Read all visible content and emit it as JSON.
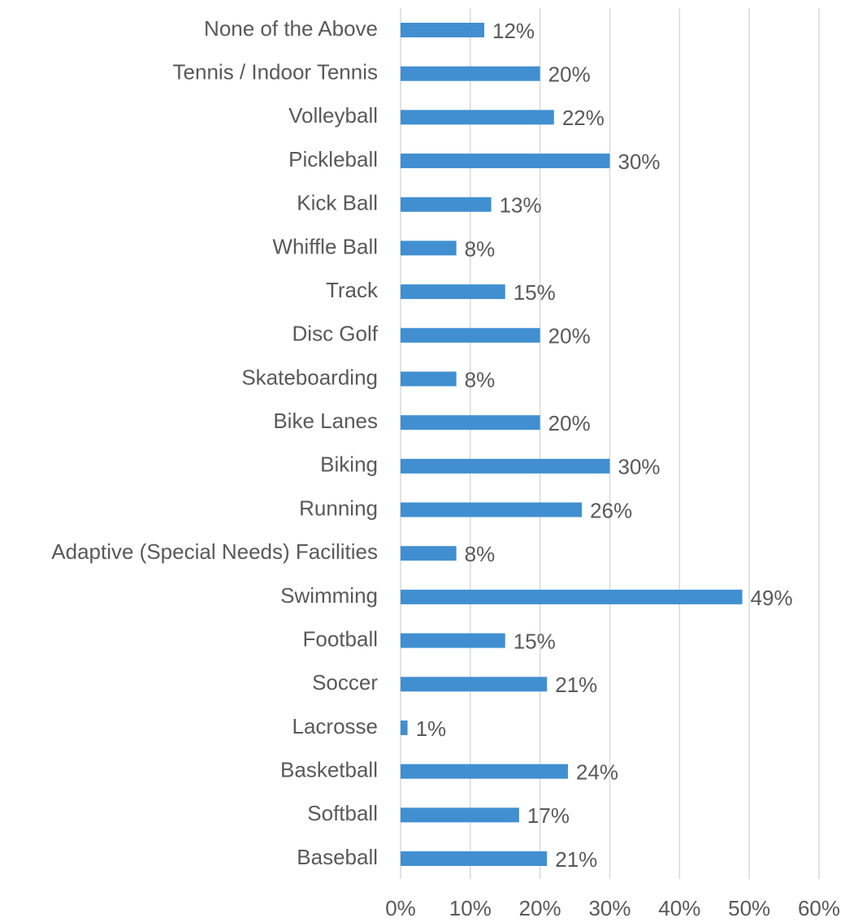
{
  "chart_data": {
    "type": "bar",
    "orientation": "horizontal",
    "categories": [
      "None of the Above",
      "Tennis / Indoor Tennis",
      "Volleyball",
      "Pickleball",
      "Kick Ball",
      "Whiffle Ball",
      "Track",
      "Disc Golf",
      "Skateboarding",
      "Bike Lanes",
      "Biking",
      "Running",
      "Adaptive (Special Needs) Facilities",
      "Swimming",
      "Football",
      "Soccer",
      "Lacrosse",
      "Basketball",
      "Softball",
      "Baseball"
    ],
    "values": [
      12,
      20,
      22,
      30,
      13,
      8,
      15,
      20,
      8,
      20,
      30,
      26,
      8,
      49,
      15,
      21,
      1,
      24,
      17,
      21
    ],
    "value_labels": [
      "12%",
      "20%",
      "22%",
      "30%",
      "13%",
      "8%",
      "15%",
      "20%",
      "8%",
      "20%",
      "30%",
      "26%",
      "8%",
      "49%",
      "15%",
      "21%",
      "1%",
      "24%",
      "17%",
      "21%"
    ],
    "color": "#418fd0",
    "xlim": [
      0,
      60
    ],
    "xticks": [
      {
        "value": 0,
        "label": "0%"
      },
      {
        "value": 10,
        "label": "10%"
      },
      {
        "value": 20,
        "label": "20%"
      },
      {
        "value": 30,
        "label": "30%"
      },
      {
        "value": 40,
        "label": "40%"
      },
      {
        "value": 50,
        "label": "50%"
      },
      {
        "value": 60,
        "label": "60%"
      }
    ],
    "grid": true
  }
}
